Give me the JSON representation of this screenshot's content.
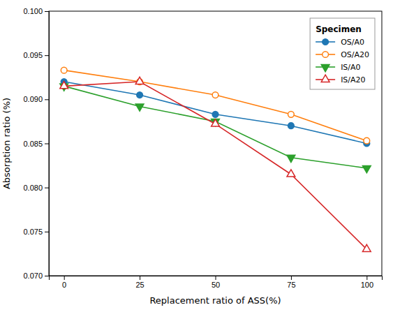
{
  "chart_data": {
    "type": "line",
    "xlabel": "Replacement ratio of ASS(%)",
    "ylabel": "Absorption ratio (%)",
    "legend_title": "Specimen",
    "x": [
      0,
      25,
      50,
      75,
      100
    ],
    "series": [
      {
        "name": "OS/A0",
        "marker": "circle",
        "values": [
          0.092,
          0.0905,
          0.0883,
          0.087,
          0.085
        ]
      },
      {
        "name": "OS/A20",
        "marker": "circle-open",
        "values": [
          0.0933,
          0.092,
          0.0905,
          0.0883,
          0.0853
        ]
      },
      {
        "name": "IS/A0",
        "marker": "triangle-down",
        "values": [
          0.0915,
          0.0892,
          0.0875,
          0.0834,
          0.0822
        ]
      },
      {
        "name": "IS/A20",
        "marker": "triangle-up-open",
        "values": [
          0.0915,
          0.092,
          0.0872,
          0.0815,
          0.073
        ]
      }
    ],
    "xlim": [
      -5,
      105
    ],
    "xticks": [
      0,
      25,
      50,
      75,
      100
    ],
    "ylim": [
      0.07,
      0.1
    ],
    "yticks": [
      {
        "value": 0.07,
        "label": "0.070"
      },
      0.075,
      {
        "value": 0.08,
        "label": "0.080"
      },
      0.085,
      {
        "value": 0.09,
        "label": "0.090"
      },
      0.095,
      {
        "value": 0.1,
        "label": "0.100"
      }
    ],
    "grid": false,
    "legend": "upper-right"
  }
}
